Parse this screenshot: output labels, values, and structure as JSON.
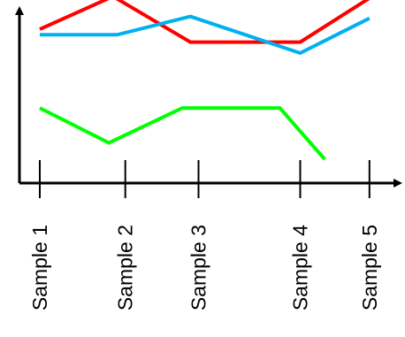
{
  "chart_data": {
    "type": "line",
    "title": "",
    "xlabel": "",
    "ylabel": "",
    "categories": [
      "Sample 1",
      "Sample 2",
      "Sample 3",
      "Sample 4",
      "Sample 5"
    ],
    "x": [
      1,
      2.05,
      2.95,
      4.2,
      5.05
    ],
    "xlim": [
      0.75,
      5.4
    ],
    "ylim": [
      0,
      10
    ],
    "grid": false,
    "legend": "none",
    "series": [
      {
        "color": "#ff0000",
        "points": [
          [
            1,
            8.4
          ],
          [
            1.9,
            10.2
          ],
          [
            2.85,
            7.7
          ],
          [
            4.2,
            7.7
          ],
          [
            5.05,
            10.1
          ]
        ]
      },
      {
        "color": "#00b0f0",
        "points": [
          [
            1,
            8.1
          ],
          [
            1.95,
            8.1
          ],
          [
            2.85,
            9.1
          ],
          [
            4.2,
            7.1
          ],
          [
            5.05,
            9.0
          ]
        ]
      },
      {
        "color": "#00ff00",
        "points": [
          [
            1,
            4.1
          ],
          [
            1.85,
            2.2
          ],
          [
            2.75,
            4.1
          ],
          [
            3.95,
            4.1
          ],
          [
            4.5,
            1.3
          ]
        ]
      }
    ]
  }
}
